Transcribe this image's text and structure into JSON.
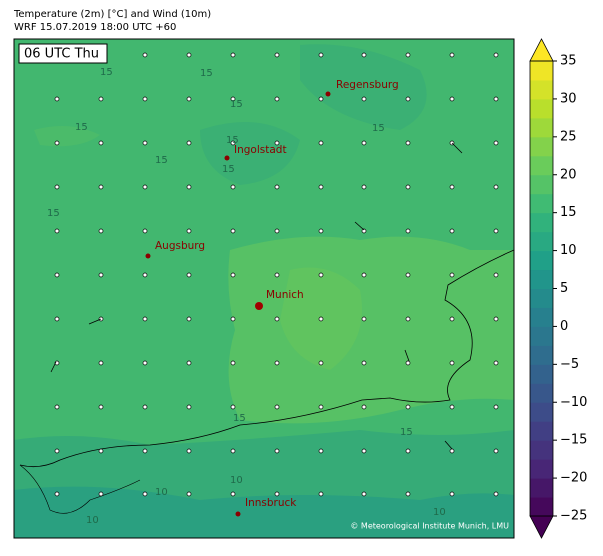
{
  "header": {
    "title": "Temperature (2m) [°C] and Wind (10m)",
    "subtitle": "WRF 15.07.2019 18:00 UTC +60"
  },
  "map": {
    "time_label": "06 UTC Thu",
    "cities": [
      "Regensburg",
      "Ingolstadt",
      "Augsburg",
      "Munich",
      "Innsbruck"
    ],
    "contour_labels": [
      15,
      15,
      15,
      15,
      15,
      15,
      15,
      15,
      15,
      15,
      15,
      10,
      10,
      10,
      10
    ],
    "credit": "© Meteorological Institute Munich, LMU"
  },
  "colorbar": {
    "lim": [
      -25,
      35
    ],
    "ticks": [
      35,
      30,
      25,
      20,
      15,
      10,
      5,
      0,
      {
        "value": -5,
        "label": "−5"
      },
      {
        "value": -10,
        "label": "−10"
      },
      {
        "value": -15,
        "label": "−15"
      },
      {
        "value": -20,
        "label": "−20"
      },
      {
        "value": -25,
        "label": "−25"
      }
    ]
  }
}
